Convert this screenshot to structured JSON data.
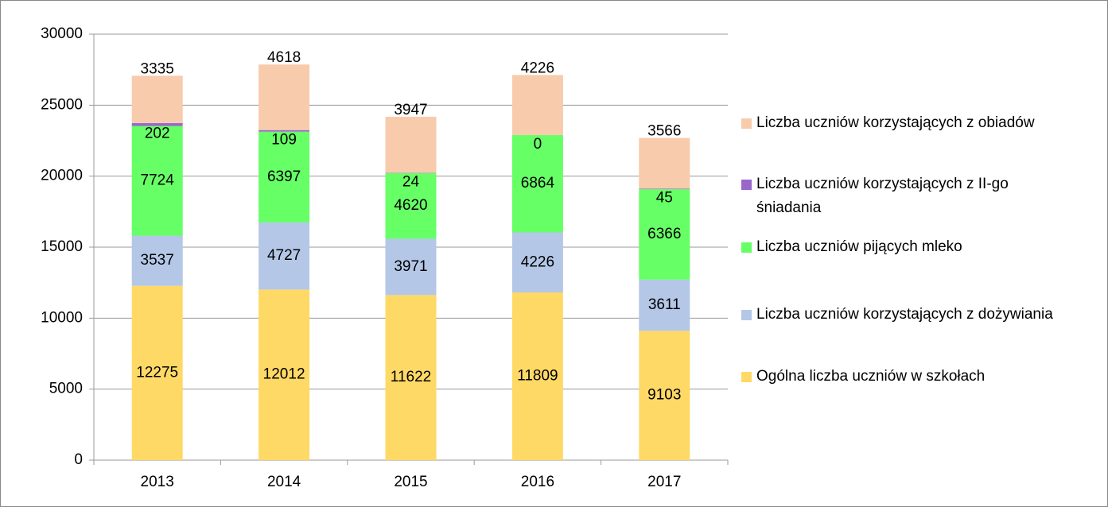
{
  "chart_data": {
    "type": "stacked_bar",
    "categories": [
      "2013",
      "2014",
      "2015",
      "2016",
      "2017"
    ],
    "series": [
      {
        "name": "Ogólna liczba uczniów w szkołach",
        "color": "#FFD966",
        "values": [
          12275,
          12012,
          11622,
          11809,
          9103
        ]
      },
      {
        "name": "Liczba uczniów korzystających z dożywiania",
        "color": "#B4C7E7",
        "values": [
          3537,
          4727,
          3971,
          4226,
          3611
        ]
      },
      {
        "name": "Liczba uczniów pijących mleko",
        "color": "#66FF66",
        "values": [
          7724,
          6397,
          4620,
          6864,
          6366
        ]
      },
      {
        "name": "Liczba uczniów korzystających z II-go śniadania",
        "color": "#9966CC",
        "values": [
          202,
          109,
          24,
          0,
          45
        ]
      },
      {
        "name": "Liczba uczniów korzystających z obiadów",
        "color": "#F8CBAD",
        "values": [
          3335,
          4618,
          3947,
          4226,
          3566
        ]
      }
    ],
    "ylim": [
      0,
      30000
    ],
    "yticks": [
      0,
      5000,
      10000,
      15000,
      20000,
      25000,
      30000
    ],
    "grid": true,
    "legend": "right"
  }
}
